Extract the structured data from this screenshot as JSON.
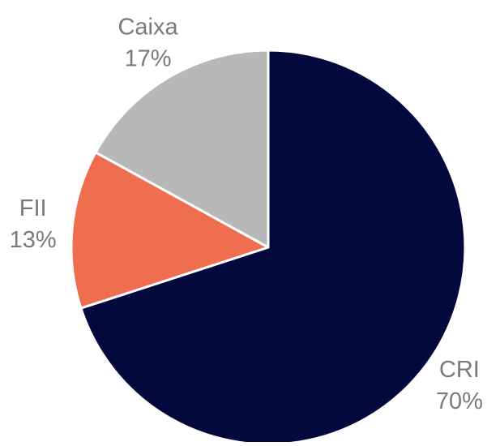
{
  "chart_data": {
    "type": "pie",
    "categories": [
      "CRI",
      "FII",
      "Caixa"
    ],
    "values": [
      70,
      13,
      17
    ],
    "value_labels": [
      "70%",
      "13%",
      "17%"
    ],
    "colors": [
      "#03083d",
      "#f06e50",
      "#b8b8b8"
    ]
  }
}
